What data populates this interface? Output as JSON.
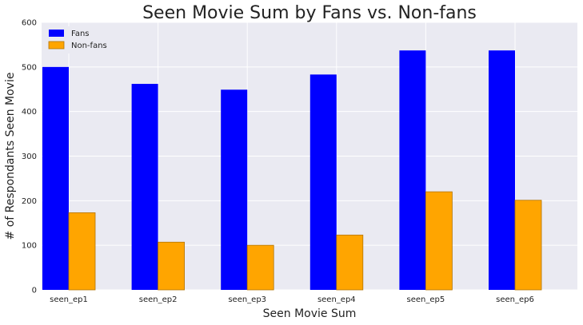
{
  "chart_data": {
    "type": "bar",
    "title": "Seen Movie Sum by Fans vs. Non-fans",
    "xlabel": "Seen Movie Sum",
    "ylabel": "# of Respondants Seen Movie",
    "categories": [
      "seen_ep1",
      "seen_ep2",
      "seen_ep3",
      "seen_ep4",
      "seen_ep5",
      "seen_ep6"
    ],
    "series": [
      {
        "name": "Fans",
        "values": [
          500,
          462,
          449,
          483,
          537,
          537
        ],
        "color": "#0000ff"
      },
      {
        "name": "Non-fans",
        "values": [
          173,
          107,
          100,
          123,
          220,
          201
        ],
        "color": "#ffa500"
      }
    ],
    "ylim": [
      0,
      600
    ],
    "yticks": [
      0,
      100,
      200,
      300,
      400,
      500,
      600
    ],
    "grid": true,
    "legend_position": "top-left",
    "background_color": "#eaeaf2",
    "grid_color": "#ffffff"
  }
}
